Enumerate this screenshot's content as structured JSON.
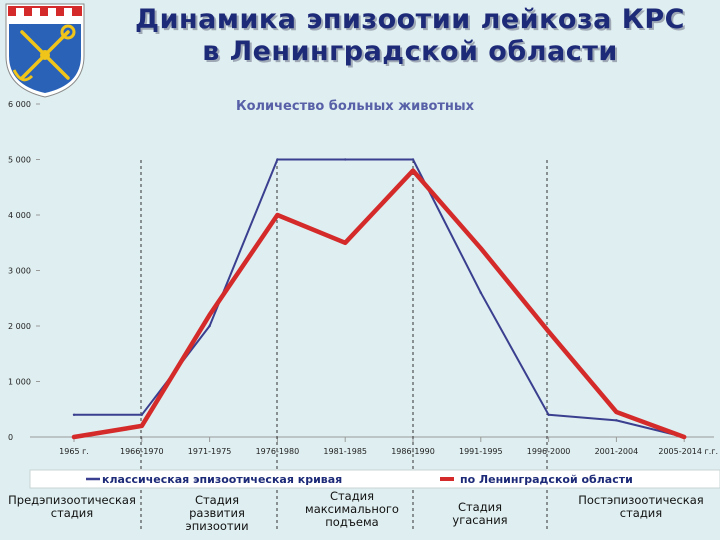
{
  "title": {
    "line1": "Динамика эпизоотии лейкоза КРС",
    "line2": "в Ленинградской области"
  },
  "colors": {
    "background": "#dfeef0",
    "title": "#1d2a78",
    "classic_series": "#3a3f8f",
    "region_series": "#d42a2a",
    "chart_title": "#5860a8"
  },
  "chart_data": {
    "type": "line",
    "title": "Количество больных животных",
    "ylim": [
      0,
      6000
    ],
    "yticks": [
      0,
      1000,
      2000,
      3000,
      4000,
      5000,
      6000
    ],
    "ytick_labels": [
      "0",
      "1 000",
      "2 000",
      "3 000",
      "4 000",
      "5 000",
      "6 000"
    ],
    "categories": [
      "1965 г.",
      "1966-1970",
      "1971-1975",
      "1976-1980",
      "1981-1985",
      "1986-1990",
      "1991-1995",
      "1996-2000",
      "2001-2004",
      "2005-2014 г.г."
    ],
    "grid": false,
    "legend_position": "bottom",
    "series": [
      {
        "name": "классическая эпизоотическая кривая",
        "color": "#3a3f8f",
        "values": [
          400,
          400,
          2000,
          5000,
          5000,
          5000,
          2600,
          400,
          300,
          0
        ]
      },
      {
        "name": "по Ленинградской области",
        "color": "#d42a2a",
        "values": [
          0,
          200,
          2200,
          4000,
          3500,
          4800,
          3400,
          1900,
          450,
          0
        ]
      }
    ]
  },
  "stages": [
    "Предэпизоотическая стадия",
    "Стадия развития эпизоотии",
    "Стадия максимального подъема",
    "Стадия угасания",
    "Постэпизоотическая стадия"
  ],
  "logo": {
    "icon": "leningrad-oblast-coat-of-arms-icon"
  }
}
